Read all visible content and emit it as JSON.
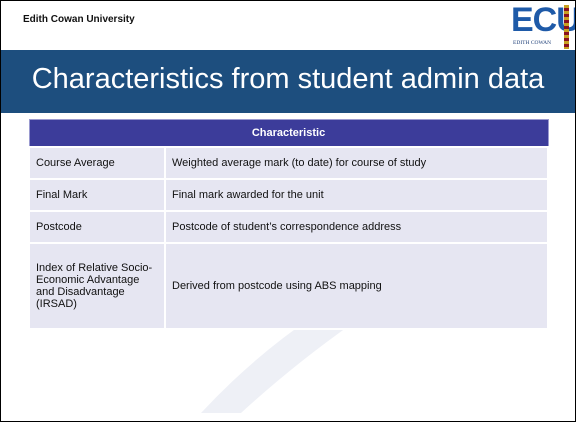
{
  "header": {
    "title": "Edith Cowan University"
  },
  "logo": {
    "text": "ECU",
    "subtext": "EDITH COWAN"
  },
  "slide": {
    "title": "Characteristics from student admin data"
  },
  "table": {
    "header": "Characteristic",
    "rows": [
      [
        "Course Average",
        "Weighted average mark  (to date) for course of study"
      ],
      [
        "Final Mark",
        "Final mark awarded for the unit"
      ],
      [
        "Postcode",
        "Postcode of student’s correspondence address"
      ],
      [
        "Index of Relative Socio-Economic Advantage and Disadvantage (IRSAD)",
        "Derived from postcode using ABS mapping"
      ]
    ]
  }
}
